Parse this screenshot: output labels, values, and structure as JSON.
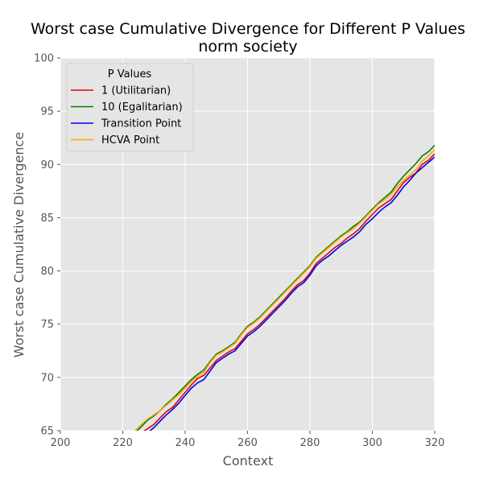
{
  "chart_data": {
    "type": "line",
    "title": "Worst case Cumulative Divergence for Different P Values",
    "subtitle": "norm society",
    "xlabel": "Context",
    "ylabel": "Worst case Cumulative Divergence",
    "xlim": [
      200,
      320
    ],
    "ylim": [
      65,
      100
    ],
    "xticks": [
      "200",
      "220",
      "240",
      "260",
      "280",
      "300",
      "320"
    ],
    "yticks": [
      "65",
      "70",
      "75",
      "80",
      "85",
      "90",
      "95",
      "100"
    ],
    "grid": true,
    "legend_title": "P Values",
    "legend_position": "top-left",
    "x": [
      224,
      226,
      228,
      230,
      232,
      234,
      236,
      238,
      240,
      242,
      244,
      246,
      248,
      250,
      252,
      254,
      256,
      258,
      260,
      262,
      264,
      266,
      268,
      270,
      272,
      274,
      276,
      278,
      280,
      282,
      284,
      286,
      288,
      290,
      292,
      294,
      296,
      298,
      300,
      302,
      304,
      306,
      308,
      310,
      312,
      314,
      316,
      318,
      320
    ],
    "series": [
      {
        "name": "1 (Utilitarian)",
        "color": "#e00000",
        "values": [
          64.3,
          64.8,
          65.2,
          65.6,
          66.2,
          66.8,
          67.2,
          67.9,
          68.6,
          69.3,
          69.9,
          70.2,
          70.9,
          71.6,
          72.0,
          72.4,
          72.7,
          73.4,
          74.1,
          74.5,
          75.0,
          75.6,
          76.2,
          76.8,
          77.4,
          78.1,
          78.7,
          79.1,
          79.8,
          80.7,
          81.2,
          81.7,
          82.2,
          82.6,
          83.1,
          83.5,
          84.0,
          84.7,
          85.3,
          85.9,
          86.3,
          86.7,
          87.5,
          88.3,
          88.8,
          89.2,
          90.0,
          90.4,
          91.0
        ]
      },
      {
        "name": "10 (Egalitarian)",
        "color": "#008000",
        "values": [
          64.8,
          65.4,
          66.0,
          66.4,
          66.9,
          67.5,
          68.0,
          68.6,
          69.2,
          69.8,
          70.3,
          70.7,
          71.5,
          72.2,
          72.5,
          72.9,
          73.3,
          74.1,
          74.8,
          75.2,
          75.7,
          76.3,
          76.9,
          77.5,
          78.1,
          78.7,
          79.3,
          79.9,
          80.5,
          81.3,
          81.8,
          82.3,
          82.8,
          83.3,
          83.7,
          84.2,
          84.6,
          85.2,
          85.8,
          86.4,
          86.9,
          87.4,
          88.2,
          88.9,
          89.5,
          90.1,
          90.8,
          91.2,
          91.8
        ]
      },
      {
        "name": "Transition Point",
        "color": "#0000ee",
        "values": [
          63.9,
          64.3,
          64.8,
          65.3,
          65.9,
          66.5,
          67.0,
          67.6,
          68.3,
          69.0,
          69.5,
          69.8,
          70.6,
          71.4,
          71.8,
          72.2,
          72.5,
          73.2,
          73.9,
          74.3,
          74.8,
          75.4,
          76.0,
          76.6,
          77.2,
          77.9,
          78.5,
          78.9,
          79.6,
          80.5,
          81.0,
          81.4,
          81.9,
          82.4,
          82.8,
          83.2,
          83.7,
          84.4,
          84.9,
          85.5,
          86.0,
          86.4,
          87.1,
          87.9,
          88.5,
          89.2,
          89.7,
          90.2,
          90.7
        ]
      },
      {
        "name": "HCVA Point",
        "color": "#ffa500",
        "values": [
          65.0,
          65.6,
          66.1,
          66.5,
          66.9,
          67.4,
          67.9,
          68.4,
          69.0,
          69.6,
          70.1,
          70.5,
          71.4,
          72.1,
          72.4,
          72.8,
          73.2,
          74.0,
          74.7,
          75.1,
          75.6,
          76.2,
          76.8,
          77.4,
          78.0,
          78.6,
          79.2,
          79.8,
          80.4,
          81.2,
          81.7,
          82.2,
          82.7,
          83.2,
          83.6,
          84.0,
          84.5,
          85.1,
          85.7,
          86.3,
          86.7,
          87.2,
          87.9,
          88.5,
          89.0,
          89.5,
          90.3,
          90.8,
          91.4
        ]
      }
    ]
  }
}
